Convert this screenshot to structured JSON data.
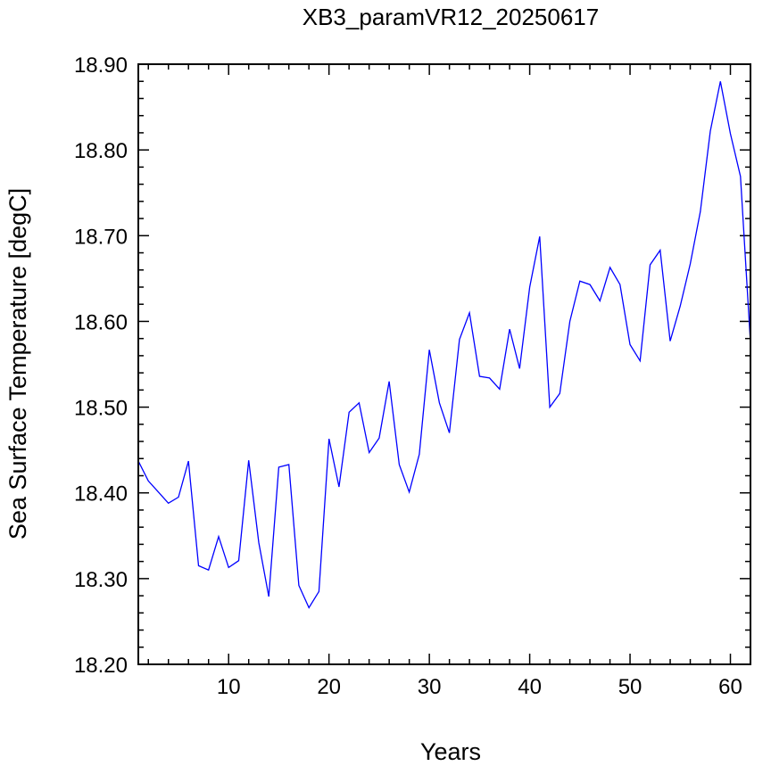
{
  "chart_data": {
    "type": "line",
    "title": "XB3_paramVR12_20250617",
    "xlabel": "Years",
    "ylabel": "Sea Surface Temperature [degC]",
    "xlim": [
      1,
      62
    ],
    "ylim": [
      18.2,
      18.9
    ],
    "xticks": [
      10,
      20,
      30,
      40,
      50,
      60
    ],
    "yticks": [
      "18.20",
      "18.30",
      "18.40",
      "18.50",
      "18.60",
      "18.70",
      "18.80",
      "18.90"
    ],
    "grid": false,
    "line_color": "#0000ff",
    "series": [
      {
        "x": [
          1,
          2,
          3,
          4,
          5,
          6,
          7,
          8,
          9,
          10,
          11,
          12,
          13,
          14,
          15,
          16,
          17,
          18,
          19,
          20,
          21,
          22,
          23,
          24,
          25,
          26,
          27,
          28,
          29,
          30,
          31,
          32,
          33,
          34,
          35,
          36,
          37,
          38,
          39,
          40,
          41,
          42,
          43,
          44,
          45,
          46,
          47,
          48,
          49,
          50,
          51,
          52,
          53,
          54,
          55,
          56,
          57,
          58,
          59,
          60,
          61,
          62
        ],
        "values": [
          18.437,
          18.414,
          18.401,
          18.388,
          18.395,
          18.437,
          18.315,
          18.31,
          18.349,
          18.313,
          18.321,
          18.438,
          18.342,
          18.279,
          18.43,
          18.433,
          18.292,
          18.266,
          18.285,
          18.463,
          18.407,
          18.494,
          18.505,
          18.447,
          18.464,
          18.53,
          18.433,
          18.401,
          18.445,
          18.567,
          18.505,
          18.47,
          18.579,
          18.61,
          18.536,
          18.534,
          18.521,
          18.591,
          18.545,
          18.64,
          18.699,
          18.5,
          18.516,
          18.6,
          18.647,
          18.643,
          18.624,
          18.663,
          18.643,
          18.573,
          18.554,
          18.666,
          18.683,
          18.577,
          18.618,
          18.667,
          18.728,
          18.822,
          18.88,
          18.819,
          18.769,
          18.575
        ]
      }
    ]
  }
}
